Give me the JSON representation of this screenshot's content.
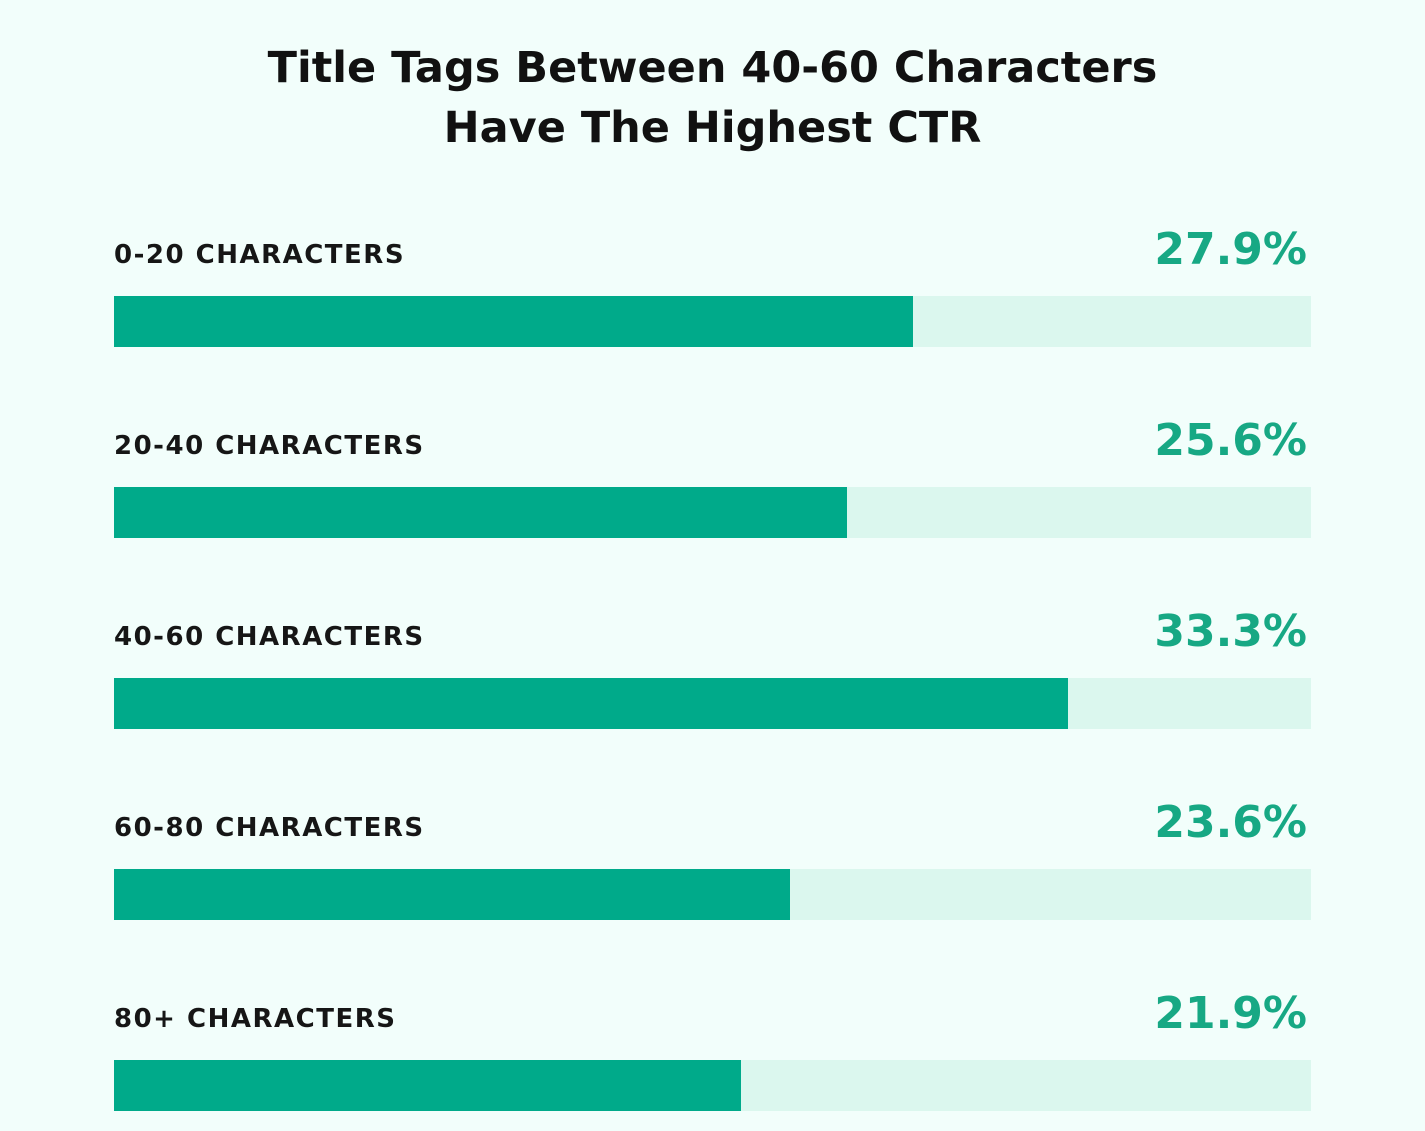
{
  "chart_data": {
    "type": "bar",
    "orientation": "horizontal",
    "title": "Title Tags Between 40-60 Characters Have The Highest CTR",
    "title_lines": [
      "Title Tags Between 40-60 Characters",
      "Have The Highest CTR"
    ],
    "categories": [
      "0-20 CHARACTERS",
      "20-40 CHARACTERS",
      "40-60 CHARACTERS",
      "60-80 CHARACTERS",
      "80+ CHARACTERS"
    ],
    "values": [
      27.9,
      25.6,
      33.3,
      23.6,
      21.9
    ],
    "value_labels": [
      "27.9%",
      "25.6%",
      "33.3%",
      "23.6%",
      "21.9%"
    ],
    "xlim": [
      0,
      41.8
    ],
    "grid": false,
    "legend": "none",
    "colors": {
      "bar": "#00aa8a",
      "track": "#dbf7ee",
      "value_text": "#17a884",
      "label_text": "#161616",
      "background": "#f2fefb"
    }
  }
}
